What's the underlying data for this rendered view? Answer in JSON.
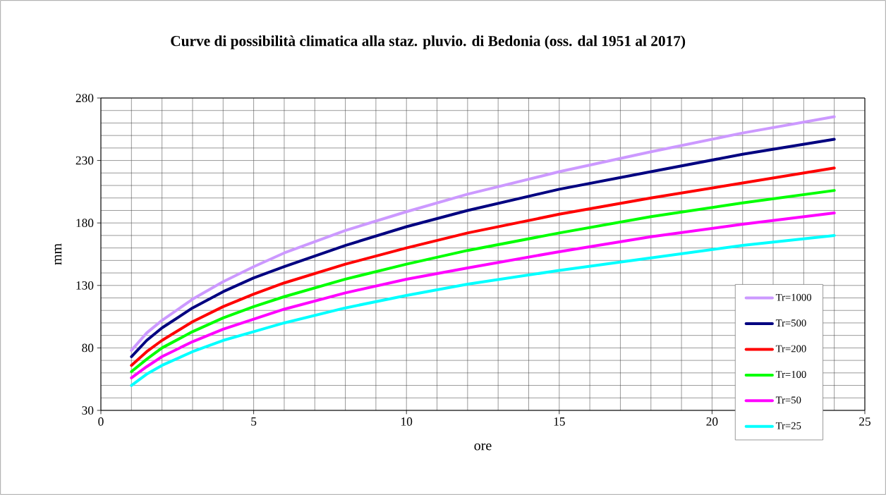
{
  "chart_data": {
    "type": "line",
    "title": "Curve di possibilità climatica alla staz. pluvio. di Bedonia  (oss. dal 1951 al 2017)",
    "xlabel": "ore",
    "ylabel": "mm",
    "x": [
      1,
      1.5,
      2,
      3,
      4,
      5,
      6,
      8,
      10,
      12,
      15,
      18,
      21,
      24
    ],
    "series": [
      {
        "name": "Tr=1000",
        "color": "#cc99ff",
        "values": [
          78,
          92,
          102,
          119,
          133,
          145,
          156,
          174,
          189,
          203,
          221,
          237,
          252,
          265
        ]
      },
      {
        "name": "Tr=500",
        "color": "#000080",
        "values": [
          73,
          86,
          96,
          112,
          125,
          136,
          145,
          162,
          177,
          190,
          207,
          221,
          235,
          247
        ]
      },
      {
        "name": "Tr=200",
        "color": "#ff0000",
        "values": [
          66,
          77,
          86,
          101,
          113,
          123,
          132,
          147,
          160,
          172,
          187,
          200,
          212,
          224
        ]
      },
      {
        "name": "Tr=100",
        "color": "#00ff00",
        "values": [
          61,
          71,
          80,
          93,
          104,
          113,
          121,
          135,
          147,
          158,
          172,
          185,
          196,
          206
        ]
      },
      {
        "name": "Tr=50",
        "color": "#ff00ff",
        "values": [
          56,
          65,
          73,
          85,
          95,
          103,
          111,
          124,
          135,
          144,
          157,
          169,
          179,
          188
        ]
      },
      {
        "name": "Tr=25",
        "color": "#00ffff",
        "values": [
          50,
          59,
          66,
          77,
          86,
          93,
          100,
          112,
          122,
          131,
          142,
          152,
          162,
          170
        ]
      }
    ],
    "xlim": [
      0,
      25
    ],
    "xticks": [
      0,
      5,
      10,
      15,
      20,
      25
    ],
    "ylim": [
      30,
      280
    ],
    "yticks": [
      30,
      80,
      130,
      180,
      230,
      280
    ],
    "grid": true,
    "legend": "bottom right",
    "marker": "none",
    "line_style": "solid"
  }
}
